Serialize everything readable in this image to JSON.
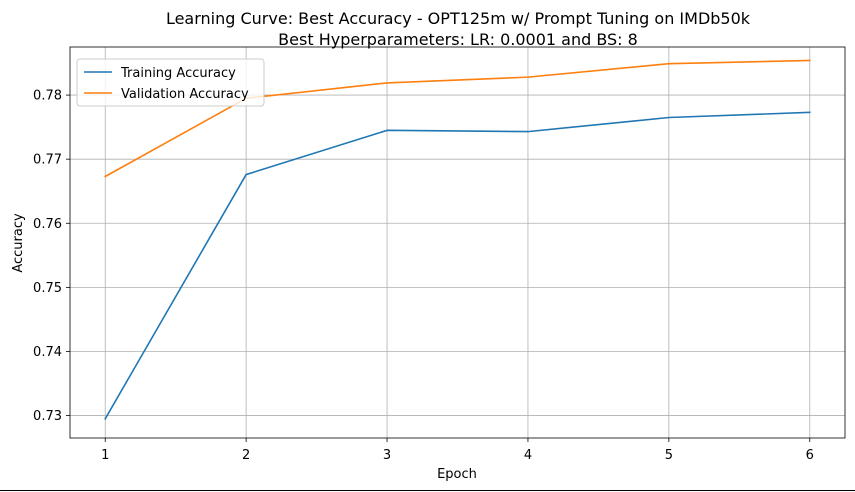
{
  "chart_data": {
    "type": "line",
    "title": "Learning Curve: Best Accuracy - OPT125m w/ Prompt Tuning on IMDb50k",
    "subtitle": "Best Hyperparameters: LR: 0.0001 and BS: 8",
    "xlabel": "Epoch",
    "ylabel": "Accuracy",
    "x": [
      1,
      2,
      3,
      4,
      5,
      6
    ],
    "xticks": [
      "1",
      "2",
      "3",
      "4",
      "5",
      "6"
    ],
    "yticks": [
      "0.73",
      "0.74",
      "0.75",
      "0.76",
      "0.77",
      "0.78"
    ],
    "xlim": [
      0.75,
      6.25
    ],
    "ylim": [
      0.7265,
      0.7875
    ],
    "grid": true,
    "legend_position": "top-left",
    "series": [
      {
        "name": "Training Accuracy",
        "color": "#1f77b4",
        "values": [
          0.7295,
          0.7676,
          0.7745,
          0.7743,
          0.7765,
          0.7773
        ]
      },
      {
        "name": "Validation Accuracy",
        "color": "#ff7f0e",
        "values": [
          0.7673,
          0.7795,
          0.7819,
          0.7828,
          0.7849,
          0.7854
        ]
      }
    ]
  }
}
